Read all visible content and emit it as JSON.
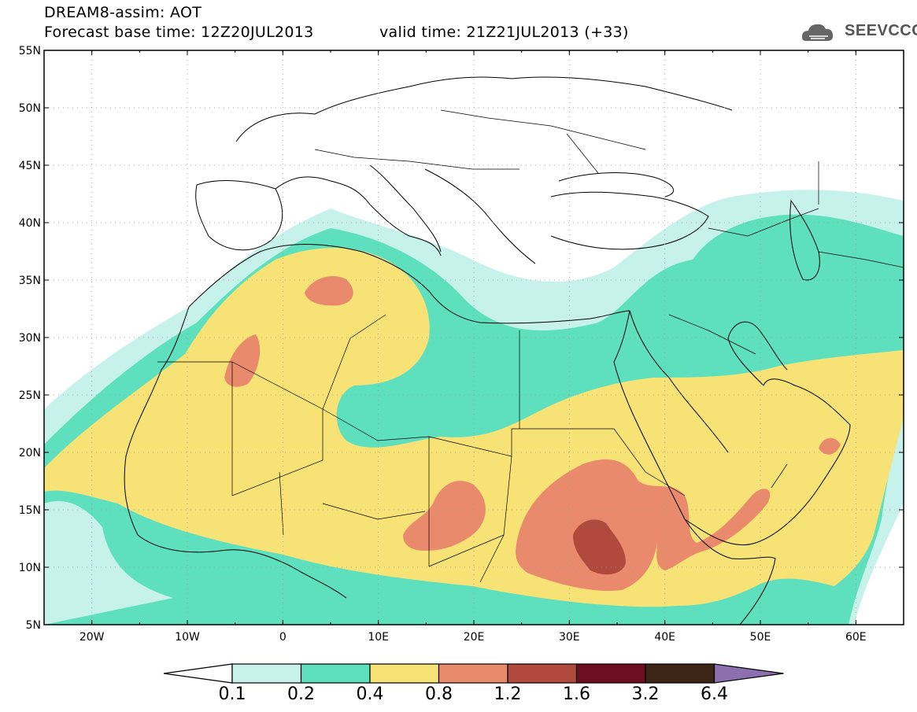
{
  "header": {
    "model": "DREAM8-assim: AOT",
    "base_time": "Forecast base time: 12Z20JUL2013",
    "valid_time": "valid time: 21Z21JUL2013 (+33)"
  },
  "logo": {
    "text": "SEEVCCC",
    "icon": "cloud-icon"
  },
  "map": {
    "lat_labels": [
      "55N",
      "50N",
      "45N",
      "40N",
      "35N",
      "30N",
      "25N",
      "20N",
      "15N",
      "10N",
      "5N"
    ],
    "lon_labels": [
      "20W",
      "10W",
      "0",
      "10E",
      "20E",
      "30E",
      "40E",
      "50E",
      "60E"
    ]
  },
  "legend": {
    "labels": [
      "0.1",
      "0.2",
      "0.4",
      "0.8",
      "1.2",
      "1.6",
      "3.2",
      "6.4"
    ],
    "colors": [
      "#c7f2ec",
      "#5ee0bf",
      "#f7e276",
      "#e98a6c",
      "#b04a3e",
      "#6e0f1f",
      "#3d2515",
      "#8e6fae"
    ]
  }
}
